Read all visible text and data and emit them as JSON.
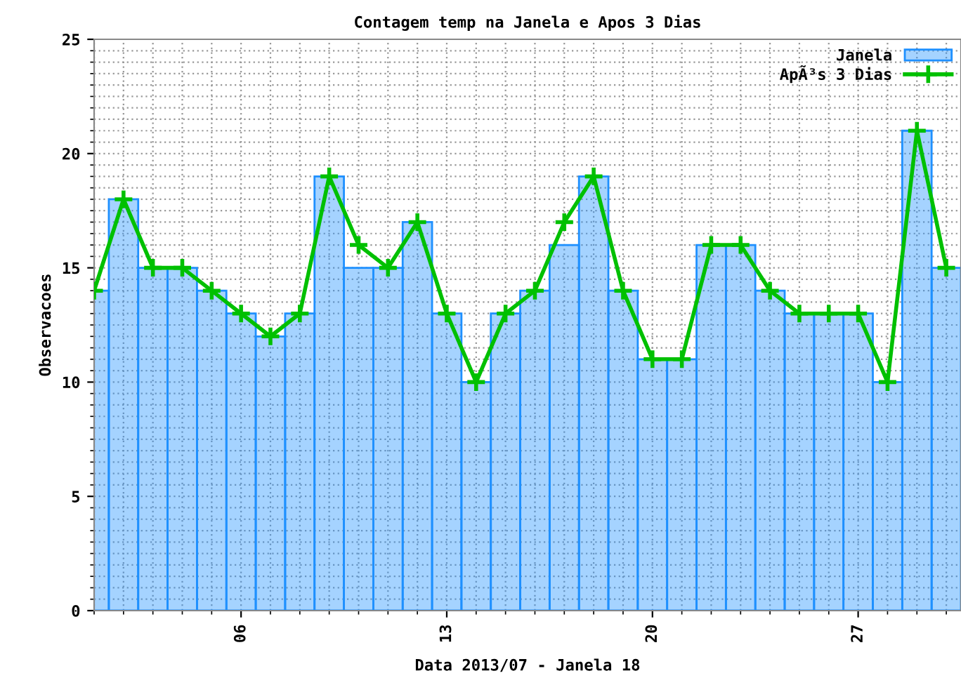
{
  "chart_data": {
    "type": "bar",
    "title": "Contagem temp na Janela e Apos 3 Dias",
    "xlabel": "Data 2013/07 - Janela 18",
    "ylabel": "Observacoes",
    "x": [
      1,
      2,
      3,
      4,
      5,
      6,
      7,
      8,
      9,
      10,
      11,
      12,
      13,
      14,
      15,
      16,
      17,
      18,
      19,
      20,
      21,
      22,
      23,
      24,
      25,
      26,
      27,
      28,
      29,
      30
    ],
    "series": [
      {
        "name": "Janela",
        "color": "#1e90ff",
        "values": [
          14,
          18,
          15,
          15,
          14,
          13,
          12,
          13,
          19,
          15,
          15,
          17,
          13,
          10,
          13,
          14,
          16,
          19,
          14,
          11,
          11,
          16,
          16,
          14,
          13,
          13,
          13,
          10,
          21,
          15
        ]
      },
      {
        "name": "ApÃ³s 3 Dias",
        "type": "line",
        "color": "#00c000",
        "marker": "cross",
        "line_style": "solid",
        "values": [
          14,
          18,
          15,
          15,
          14,
          13,
          12,
          13,
          19,
          16,
          15,
          17,
          13,
          10,
          13,
          14,
          17,
          19,
          14,
          11,
          11,
          16,
          16,
          14,
          13,
          13,
          13,
          10,
          21,
          15
        ]
      }
    ],
    "xlim": [
      1,
      30.5
    ],
    "xticks": [
      {
        "value": 6,
        "label": "06"
      },
      {
        "value": 13,
        "label": "13"
      },
      {
        "value": 20,
        "label": "20"
      },
      {
        "value": 27,
        "label": "27"
      }
    ],
    "ylim": [
      0,
      25
    ],
    "yticks": [
      0,
      5,
      10,
      15,
      20,
      25
    ],
    "grid": true,
    "legend": "top right"
  }
}
